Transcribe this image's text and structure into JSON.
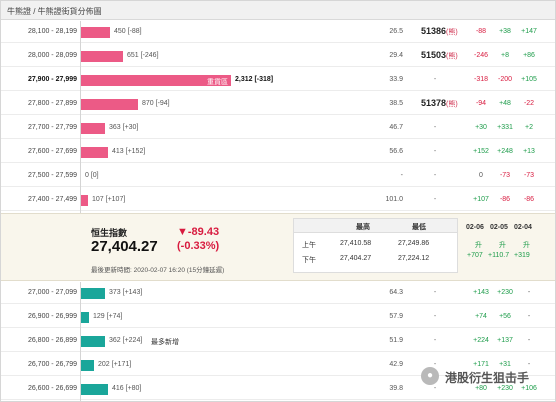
{
  "breadcrumb": "牛熊證 / 牛熊證街貨分佈圖",
  "colors": {
    "bull": "#ec5a86",
    "bear": "#1aa69a",
    "negative": "#d81b3f",
    "positive": "#1d9c4a"
  },
  "bull_rows": [
    {
      "range": "28,100 - 28,199",
      "bar_label": "450 [-88]",
      "bar_value": 450,
      "v1": "26.5",
      "code": "51386",
      "tag": "(熊)",
      "d1": "-88",
      "d2": "+38",
      "d3": "+147"
    },
    {
      "range": "28,000 - 28,099",
      "bar_label": "651 [-246]",
      "bar_value": 651,
      "v1": "29.4",
      "code": "51503",
      "tag": "(熊)",
      "d1": "-246",
      "d2": "+8",
      "d3": "+86"
    },
    {
      "range": "27,900 - 27,999",
      "bar_label": "2,312 [-318]",
      "bar_value": 2312,
      "in_bar": "重貨區",
      "bold": true,
      "v1": "33.9",
      "code": "",
      "tag": "",
      "d1": "-318",
      "d2": "-200",
      "d3": "+105"
    },
    {
      "range": "27,800 - 27,899",
      "bar_label": "870 [-94]",
      "bar_value": 870,
      "v1": "38.5",
      "code": "51378",
      "tag": "(熊)",
      "d1": "-94",
      "d2": "+48",
      "d3": "-22"
    },
    {
      "range": "27,700 - 27,799",
      "bar_label": "363 [+30]",
      "bar_value": 363,
      "v1": "46.7",
      "code": "",
      "tag": "",
      "d1": "+30",
      "d2": "+331",
      "d3": "+2"
    },
    {
      "range": "27,600 - 27,699",
      "bar_label": "413 [+152]",
      "bar_value": 413,
      "v1": "56.6",
      "code": "",
      "tag": "",
      "d1": "+152",
      "d2": "+248",
      "d3": "+13"
    },
    {
      "range": "27,500 - 27,599",
      "bar_label": "0 [0]",
      "bar_value": 0,
      "v1": "-",
      "code": "",
      "tag": "",
      "d1": "0",
      "d2": "-73",
      "d3": "-73"
    },
    {
      "range": "27,400 - 27,499",
      "bar_label": "107 [+107]",
      "bar_value": 107,
      "v1": "101.0",
      "code": "",
      "tag": "",
      "d1": "+107",
      "d2": "-86",
      "d3": "-86"
    }
  ],
  "hsi": {
    "title": "恒生指數",
    "value": "27,404.27",
    "change": "▼-89.43",
    "change_pct": "(-0.33%)",
    "updated": "最後更新時間: 2020-02-07 16:20 (15分鐘延遲)",
    "table": {
      "col_high": "最高",
      "col_low": "最低",
      "rows": [
        {
          "label": "上午",
          "high": "27,410.58",
          "low": "27,249.86"
        },
        {
          "label": "下午",
          "high": "27,404.27",
          "low": "27,224.12"
        }
      ]
    },
    "dates": [
      "02-06",
      "02-05",
      "02-04"
    ],
    "rise": [
      "升",
      "升",
      "升"
    ],
    "date_changes": [
      "+707",
      "+110.7",
      "+319"
    ]
  },
  "bear_rows": [
    {
      "range": "27,000 - 27,099",
      "bar_label": "373 [+143]",
      "bar_value": 373,
      "v1": "64.3",
      "d1": "+143",
      "d2": "+230",
      "d3": "-"
    },
    {
      "range": "26,900 - 26,999",
      "bar_label": "129 [+74]",
      "bar_value": 129,
      "v1": "57.9",
      "d1": "+74",
      "d2": "+56",
      "d3": "-"
    },
    {
      "range": "26,800 - 26,899",
      "bar_label": "362 [+224]",
      "bar_value": 362,
      "note": "最多新增",
      "v1": "51.9",
      "d1": "+224",
      "d2": "+137",
      "d3": "-"
    },
    {
      "range": "26,700 - 26,799",
      "bar_label": "202 [+171]",
      "bar_value": 202,
      "v1": "42.9",
      "d1": "+171",
      "d2": "+31",
      "d3": "-"
    },
    {
      "range": "26,600 - 26,699",
      "bar_label": "416 [+80]",
      "bar_value": 416,
      "v1": "39.8",
      "d1": "+80",
      "d2": "+230",
      "d3": "+106"
    }
  ],
  "watermark": "港股衍生狙击手"
}
